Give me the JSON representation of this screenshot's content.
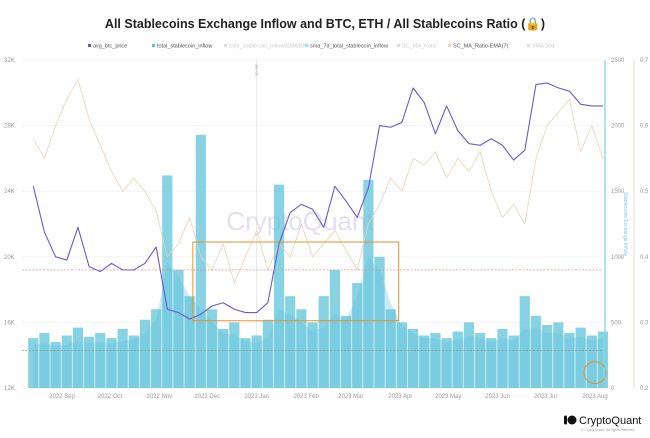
{
  "chart_data": {
    "type": "bar+line",
    "title": "All Stablecoins Exchange Inflow and BTC, ETH / All Stablecoins Ratio (🔒)",
    "legend_position": "top",
    "legend": [
      {
        "name": "avg_btc_price",
        "color": "#6a5acd",
        "faded": false
      },
      {
        "name": "total_stablecoin_inflow",
        "color": "#5fc3d9",
        "faded": false
      },
      {
        "name": "total_stablecoin_inflow(EMA100)",
        "color": "#bbbbbb",
        "faded": true
      },
      {
        "name": "sma_7d_total_stablecoin_inflow",
        "color": "#a9dff0",
        "faded": false
      },
      {
        "name": "SC_MA_Ratio",
        "color": "#bbbbbb",
        "faded": true
      },
      {
        "name": "SC_MA_Ratio-EMA(7)",
        "color": "#e8d3b8",
        "faded": false
      },
      {
        "name": "SMA 30d",
        "color": "#bbbbbb",
        "faded": true
      }
    ],
    "x_tick_labels": [
      "2022 Sep",
      "2022 Oct",
      "2022 Nov",
      "2022 Dec",
      "2023 Jan",
      "2023 Feb",
      "2023 Mar",
      "2023 Apr",
      "2023 May",
      "2023 Jun",
      "2023 Jul",
      "2023 Aug"
    ],
    "x_tick_dates": [
      "2022-09-01",
      "2022-10-01",
      "2022-11-01",
      "2022-12-01",
      "2023-01-01",
      "2023-02-01",
      "2023-03-01",
      "2023-04-01",
      "2023-05-01",
      "2023-06-01",
      "2023-07-01",
      "2023-08-01"
    ],
    "x_range": [
      "2022-08-10",
      "2023-08-07"
    ],
    "left_axis": {
      "range": [
        12000,
        32000
      ],
      "ticks": [
        12000,
        16000,
        20000,
        24000,
        28000,
        32000
      ],
      "tick_labels": [
        "12K",
        "16K",
        "20K",
        "24K",
        "28K",
        "32K"
      ]
    },
    "right_axis_1": {
      "label": "Stablecoins Exchange Inflow",
      "range": [
        0,
        2500
      ],
      "ticks": [
        "0",
        "500",
        "1000",
        "1500",
        "2000",
        "2500"
      ]
    },
    "right_axis_2": {
      "range": [
        0.2,
        0.7
      ],
      "ticks": [
        "0.2",
        "0.3",
        "0.4",
        "0.5",
        "0.6",
        "0.7"
      ]
    },
    "grid": true,
    "vertical_marker": {
      "date": "2023-01-01",
      "label": "Jan 01"
    },
    "reference_lines": [
      {
        "axis": "left",
        "value": 19200,
        "color": "#d98080",
        "style": "dashed"
      },
      {
        "axis": "left",
        "value": 14300,
        "color": "#888888",
        "style": "dashed"
      }
    ],
    "annotations": [
      {
        "type": "rectangle",
        "color": "#e8902a",
        "x_from": "2022-11-22",
        "x_to": "2023-03-31",
        "y_from_left_axis": 16100,
        "y_to_left_axis": 20900
      },
      {
        "type": "circle",
        "color": "#e8902a",
        "date": "2023-08-01",
        "value_right_axis_1": 270
      }
    ],
    "dates": [
      "2022-08-14",
      "2022-08-21",
      "2022-08-28",
      "2022-09-04",
      "2022-09-11",
      "2022-09-18",
      "2022-09-25",
      "2022-10-02",
      "2022-10-09",
      "2022-10-16",
      "2022-10-23",
      "2022-10-30",
      "2022-11-06",
      "2022-11-13",
      "2022-11-20",
      "2022-11-27",
      "2022-12-04",
      "2022-12-11",
      "2022-12-18",
      "2022-12-25",
      "2023-01-01",
      "2023-01-08",
      "2023-01-15",
      "2023-01-22",
      "2023-01-29",
      "2023-02-05",
      "2023-02-12",
      "2023-02-19",
      "2023-02-26",
      "2023-03-05",
      "2023-03-12",
      "2023-03-19",
      "2023-03-26",
      "2023-04-02",
      "2023-04-09",
      "2023-04-16",
      "2023-04-23",
      "2023-04-30",
      "2023-05-07",
      "2023-05-14",
      "2023-05-21",
      "2023-05-28",
      "2023-06-04",
      "2023-06-11",
      "2023-06-18",
      "2023-06-25",
      "2023-07-02",
      "2023-07-09",
      "2023-07-16",
      "2023-07-23",
      "2023-07-30",
      "2023-08-06"
    ],
    "series": [
      {
        "name": "avg_btc_price",
        "axis": "left",
        "type": "line",
        "color": "#6a5acd",
        "values": [
          24300,
          21500,
          20000,
          19800,
          21800,
          19400,
          19100,
          19600,
          19200,
          19200,
          19600,
          20600,
          16800,
          16600,
          16200,
          16500,
          17000,
          17200,
          16800,
          16600,
          16600,
          17200,
          20800,
          22700,
          23200,
          22900,
          21800,
          24300,
          23400,
          22400,
          24200,
          28000,
          27900,
          28200,
          30300,
          29400,
          27500,
          29200,
          27700,
          26900,
          26800,
          27200,
          26800,
          25900,
          26500,
          30500,
          30600,
          30300,
          30100,
          29300,
          29200,
          29200
        ]
      },
      {
        "name": "total_stablecoin_inflow",
        "axis": "right_1",
        "type": "bar",
        "color": "#5fc3d9",
        "values": [
          380,
          420,
          350,
          400,
          460,
          390,
          420,
          380,
          450,
          400,
          520,
          600,
          1620,
          900,
          700,
          1930,
          600,
          450,
          500,
          380,
          400,
          520,
          1550,
          700,
          600,
          500,
          700,
          900,
          550,
          800,
          1585,
          1000,
          600,
          500,
          450,
          400,
          420,
          380,
          430,
          500,
          420,
          380,
          450,
          400,
          700,
          550,
          480,
          500,
          420,
          460,
          400,
          430
        ]
      },
      {
        "name": "sma_7d_total_stablecoin_inflow",
        "axis": "right_1",
        "type": "area",
        "color": "#a9dff0",
        "values": [
          330,
          340,
          320,
          330,
          360,
          340,
          350,
          340,
          360,
          370,
          420,
          520,
          960,
          850,
          700,
          600,
          500,
          420,
          400,
          360,
          340,
          380,
          600,
          560,
          500,
          440,
          460,
          560,
          520,
          700,
          1000,
          900,
          650,
          480,
          420,
          380,
          380,
          350,
          370,
          400,
          380,
          350,
          380,
          360,
          450,
          460,
          420,
          420,
          380,
          390,
          360,
          380
        ]
      },
      {
        "name": "SC_MA_Ratio-EMA(7)",
        "axis": "right_2",
        "type": "line",
        "color": "#e8d3b8",
        "values": [
          0.58,
          0.55,
          0.6,
          0.64,
          0.67,
          0.61,
          0.57,
          0.53,
          0.5,
          0.52,
          0.5,
          0.47,
          0.4,
          0.42,
          0.46,
          0.4,
          0.38,
          0.42,
          0.36,
          0.4,
          0.44,
          0.38,
          0.42,
          0.4,
          0.45,
          0.4,
          0.42,
          0.44,
          0.41,
          0.38,
          0.45,
          0.48,
          0.52,
          0.5,
          0.55,
          0.54,
          0.56,
          0.52,
          0.55,
          0.53,
          0.56,
          0.5,
          0.46,
          0.48,
          0.45,
          0.55,
          0.6,
          0.62,
          0.64,
          0.56,
          0.6,
          0.55
        ]
      }
    ]
  },
  "watermark": "CryptoQuant",
  "brand": {
    "name": "CryptoQuant",
    "copyright": "© CryptoQuant. All rights reserved."
  }
}
